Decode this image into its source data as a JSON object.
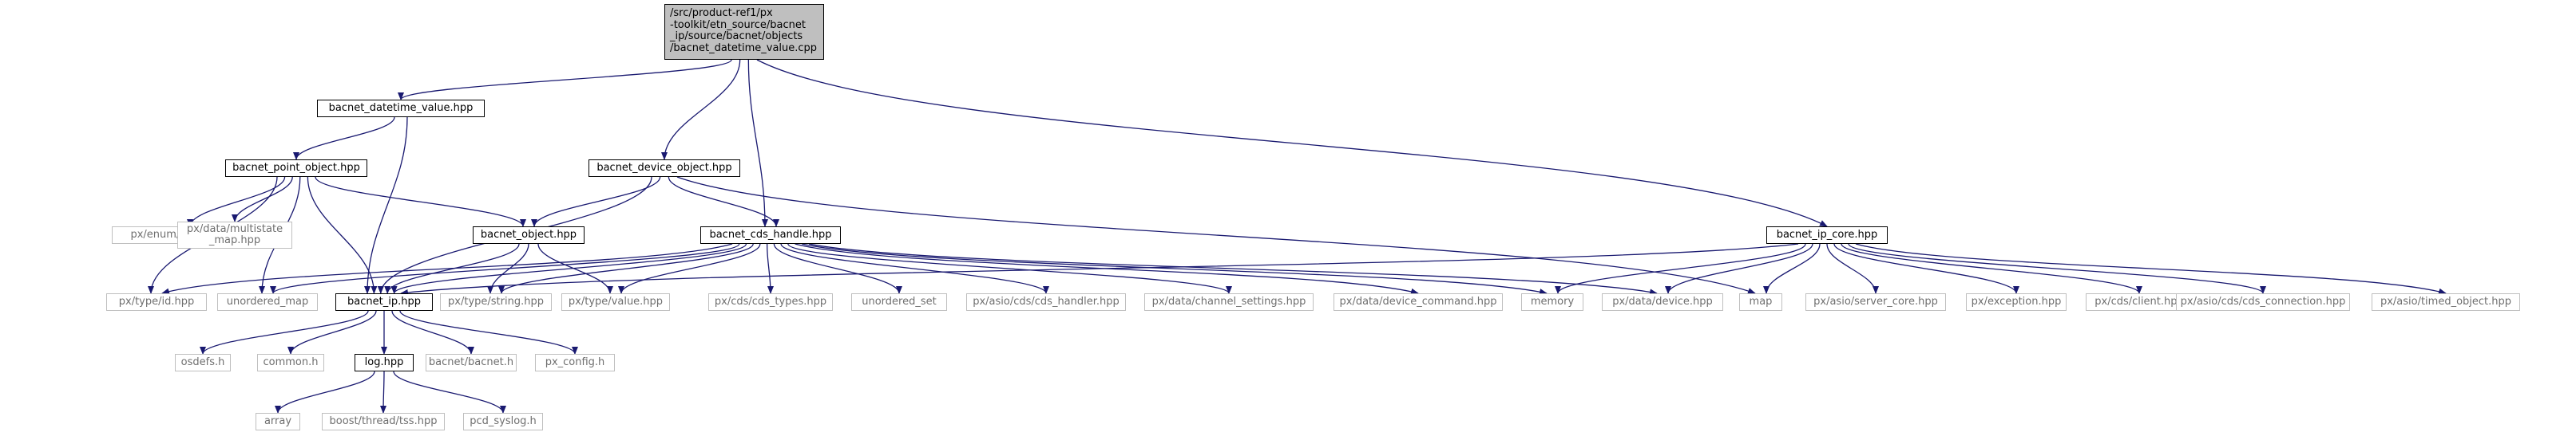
{
  "nodes": [
    {
      "id": "root",
      "label": "/src/product-ref1/px\n-toolkit/etn_source/bacnet\n_ip/source/bacnet/objects\n/bacnet_datetime_value.cpp",
      "kind": "root"
    },
    {
      "id": "datetime",
      "label": "bacnet_datetime_value.hpp",
      "kind": "main"
    },
    {
      "id": "device_obj",
      "label": "bacnet_device_object.hpp",
      "kind": "main"
    },
    {
      "id": "ip_core",
      "label": "bacnet_ip_core.hpp",
      "kind": "main"
    },
    {
      "id": "point_obj",
      "label": "bacnet_point_object.hpp",
      "kind": "main"
    },
    {
      "id": "cds_handle",
      "label": "bacnet_cds_handle.hpp",
      "kind": "main"
    },
    {
      "id": "object",
      "label": "bacnet_object.hpp",
      "kind": "main"
    },
    {
      "id": "enum_datatype",
      "label": "px/enum/datatype.hpp",
      "kind": "leaf"
    },
    {
      "id": "multistate",
      "label": "px/data/multistate\n_map.hpp",
      "kind": "leaf"
    },
    {
      "id": "type_id",
      "label": "px/type/id.hpp",
      "kind": "leaf"
    },
    {
      "id": "unordered_map",
      "label": "unordered_map",
      "kind": "leaf"
    },
    {
      "id": "bacnet_ip",
      "label": "bacnet_ip.hpp",
      "kind": "main"
    },
    {
      "id": "type_string",
      "label": "px/type/string.hpp",
      "kind": "leaf"
    },
    {
      "id": "type_value",
      "label": "px/type/value.hpp",
      "kind": "leaf"
    },
    {
      "id": "cds_types",
      "label": "px/cds/cds_types.hpp",
      "kind": "leaf"
    },
    {
      "id": "unordered_set",
      "label": "unordered_set",
      "kind": "leaf"
    },
    {
      "id": "cds_handler",
      "label": "px/asio/cds/cds_handler.hpp",
      "kind": "leaf"
    },
    {
      "id": "channel_settings",
      "label": "px/data/channel_settings.hpp",
      "kind": "leaf"
    },
    {
      "id": "device_command",
      "label": "px/data/device_command.hpp",
      "kind": "leaf"
    },
    {
      "id": "memory",
      "label": "memory",
      "kind": "leaf"
    },
    {
      "id": "data_device",
      "label": "px/data/device.hpp",
      "kind": "leaf"
    },
    {
      "id": "map",
      "label": "map",
      "kind": "leaf"
    },
    {
      "id": "server_core",
      "label": "px/asio/server_core.hpp",
      "kind": "leaf"
    },
    {
      "id": "exception",
      "label": "px/exception.hpp",
      "kind": "leaf"
    },
    {
      "id": "cds_client",
      "label": "px/cds/client.hpp",
      "kind": "leaf"
    },
    {
      "id": "cds_connection",
      "label": "px/asio/cds/cds_connection.hpp",
      "kind": "leaf"
    },
    {
      "id": "timed_object",
      "label": "px/asio/timed_object.hpp",
      "kind": "leaf"
    },
    {
      "id": "osdefs",
      "label": "osdefs.h",
      "kind": "leaf"
    },
    {
      "id": "common",
      "label": "common.h",
      "kind": "leaf"
    },
    {
      "id": "log",
      "label": "log.hpp",
      "kind": "main"
    },
    {
      "id": "bacnet_h",
      "label": "bacnet/bacnet.h",
      "kind": "leaf"
    },
    {
      "id": "px_config",
      "label": "px_config.h",
      "kind": "leaf"
    },
    {
      "id": "array",
      "label": "array",
      "kind": "leaf"
    },
    {
      "id": "tss",
      "label": "boost/thread/tss.hpp",
      "kind": "leaf"
    },
    {
      "id": "syslog",
      "label": "pcd_syslog.h",
      "kind": "leaf"
    }
  ],
  "edges": [
    [
      "root",
      "datetime"
    ],
    [
      "root",
      "device_obj"
    ],
    [
      "root",
      "cds_handle"
    ],
    [
      "root",
      "ip_core"
    ],
    [
      "datetime",
      "point_obj"
    ],
    [
      "datetime",
      "bacnet_ip"
    ],
    [
      "point_obj",
      "enum_datatype"
    ],
    [
      "point_obj",
      "multistate"
    ],
    [
      "point_obj",
      "type_id"
    ],
    [
      "point_obj",
      "unordered_map"
    ],
    [
      "point_obj",
      "bacnet_ip"
    ],
    [
      "point_obj",
      "object"
    ],
    [
      "device_obj",
      "object"
    ],
    [
      "device_obj",
      "cds_handle"
    ],
    [
      "device_obj",
      "bacnet_ip"
    ],
    [
      "device_obj",
      "map"
    ],
    [
      "object",
      "bacnet_ip"
    ],
    [
      "object",
      "type_string"
    ],
    [
      "object",
      "type_value"
    ],
    [
      "cds_handle",
      "type_id"
    ],
    [
      "cds_handle",
      "unordered_map"
    ],
    [
      "cds_handle",
      "bacnet_ip"
    ],
    [
      "cds_handle",
      "type_string"
    ],
    [
      "cds_handle",
      "type_value"
    ],
    [
      "cds_handle",
      "cds_types"
    ],
    [
      "cds_handle",
      "unordered_set"
    ],
    [
      "cds_handle",
      "cds_handler"
    ],
    [
      "cds_handle",
      "channel_settings"
    ],
    [
      "cds_handle",
      "device_command"
    ],
    [
      "cds_handle",
      "memory"
    ],
    [
      "cds_handle",
      "data_device"
    ],
    [
      "ip_core",
      "bacnet_ip"
    ],
    [
      "ip_core",
      "memory"
    ],
    [
      "ip_core",
      "data_device"
    ],
    [
      "ip_core",
      "map"
    ],
    [
      "ip_core",
      "server_core"
    ],
    [
      "ip_core",
      "exception"
    ],
    [
      "ip_core",
      "cds_client"
    ],
    [
      "ip_core",
      "cds_connection"
    ],
    [
      "ip_core",
      "timed_object"
    ],
    [
      "bacnet_ip",
      "osdefs"
    ],
    [
      "bacnet_ip",
      "common"
    ],
    [
      "bacnet_ip",
      "log"
    ],
    [
      "bacnet_ip",
      "bacnet_h"
    ],
    [
      "bacnet_ip",
      "px_config"
    ],
    [
      "log",
      "array"
    ],
    [
      "log",
      "tss"
    ],
    [
      "log",
      "syslog"
    ]
  ]
}
